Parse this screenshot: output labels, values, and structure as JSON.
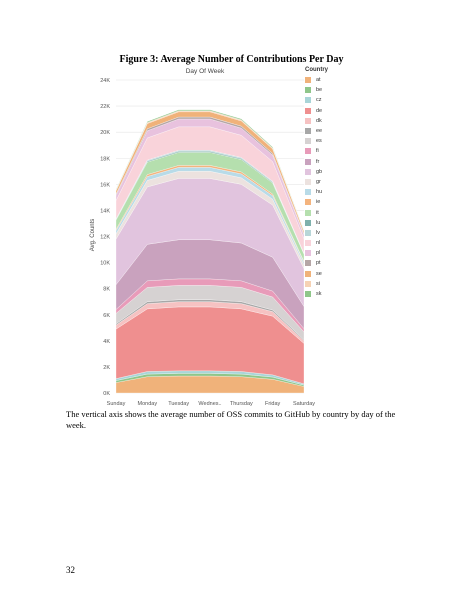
{
  "page": {
    "figure_title": "Figure 3: Average Number of Contributions Per Day",
    "caption": "The vertical axis shows the average number of OSS commits to GitHub by country by day of the week.",
    "page_number": "32"
  },
  "chart_data": {
    "type": "area",
    "stacked": true,
    "title": "Day Of Week",
    "xlabel": "",
    "ylabel": "Avg. Counts",
    "legend_title": "Country",
    "legend_position": "right",
    "categories": [
      "Sunday",
      "Monday",
      "Tuesday",
      "Wednes..",
      "Thursday",
      "Friday",
      "Saturday"
    ],
    "ylim": [
      0,
      24000
    ],
    "yticks": [
      0,
      2000,
      4000,
      6000,
      8000,
      10000,
      12000,
      14000,
      16000,
      18000,
      20000,
      22000,
      24000
    ],
    "ytick_labels": [
      "0K",
      "2K",
      "4K",
      "6K",
      "8K",
      "10K",
      "12K",
      "14K",
      "16K",
      "18K",
      "20K",
      "22K",
      "24K"
    ],
    "grid": true,
    "series": [
      {
        "name": "at",
        "color": "#f0b27a",
        "values": [
          800,
          1250,
          1300,
          1300,
          1250,
          1050,
          500
        ]
      },
      {
        "name": "be",
        "color": "#8fc68a",
        "values": [
          150,
          200,
          200,
          200,
          200,
          170,
          100
        ]
      },
      {
        "name": "cz",
        "color": "#a9d5d8",
        "values": [
          150,
          200,
          200,
          200,
          200,
          170,
          100
        ]
      },
      {
        "name": "de",
        "color": "#ef8f8f",
        "values": [
          3800,
          4800,
          4900,
          4900,
          4800,
          4500,
          3100
        ]
      },
      {
        "name": "dk",
        "color": "#f6c2c2",
        "values": [
          300,
          400,
          400,
          400,
          400,
          350,
          200
        ]
      },
      {
        "name": "ee",
        "color": "#a7a7a7",
        "values": [
          100,
          150,
          150,
          150,
          150,
          120,
          80
        ]
      },
      {
        "name": "es",
        "color": "#d6d2d2",
        "values": [
          800,
          1100,
          1100,
          1100,
          1100,
          1000,
          600
        ]
      },
      {
        "name": "fi",
        "color": "#e89bb9",
        "values": [
          300,
          500,
          500,
          500,
          500,
          450,
          250
        ]
      },
      {
        "name": "fr",
        "color": "#c9a2be",
        "values": [
          1900,
          2800,
          3000,
          3000,
          2900,
          2600,
          1700
        ]
      },
      {
        "name": "gb",
        "color": "#e1c4de",
        "values": [
          3500,
          4400,
          4700,
          4700,
          4500,
          4000,
          2900
        ]
      },
      {
        "name": "gr",
        "color": "#ece2df",
        "values": [
          400,
          500,
          550,
          550,
          500,
          450,
          300
        ]
      },
      {
        "name": "hu",
        "color": "#b8dbe8",
        "values": [
          250,
          300,
          300,
          300,
          300,
          270,
          180
        ]
      },
      {
        "name": "ie",
        "color": "#f4b47e",
        "values": [
          100,
          150,
          150,
          150,
          150,
          120,
          80
        ]
      },
      {
        "name": "it",
        "color": "#b5dfae",
        "values": [
          700,
          950,
          1000,
          1000,
          950,
          850,
          550
        ]
      },
      {
        "name": "lu",
        "color": "#7fb1ac",
        "values": [
          50,
          80,
          80,
          80,
          80,
          70,
          40
        ]
      },
      {
        "name": "lv",
        "color": "#b8d6d8",
        "values": [
          50,
          80,
          80,
          80,
          80,
          70,
          40
        ]
      },
      {
        "name": "nl",
        "color": "#f9d3da",
        "values": [
          1400,
          1700,
          1800,
          1800,
          1700,
          1500,
          1100
        ]
      },
      {
        "name": "pl",
        "color": "#e8c2de",
        "values": [
          400,
          550,
          600,
          600,
          550,
          500,
          300
        ]
      },
      {
        "name": "pt",
        "color": "#b5a6a6",
        "values": [
          100,
          150,
          150,
          150,
          150,
          120,
          80
        ]
      },
      {
        "name": "se",
        "color": "#f0b27a",
        "values": [
          250,
          400,
          400,
          400,
          400,
          350,
          200
        ]
      },
      {
        "name": "si",
        "color": "#f6d2b4",
        "values": [
          50,
          80,
          80,
          80,
          80,
          70,
          40
        ]
      },
      {
        "name": "sk",
        "color": "#8fc68a",
        "values": [
          50,
          80,
          80,
          80,
          80,
          70,
          40
        ]
      }
    ]
  }
}
